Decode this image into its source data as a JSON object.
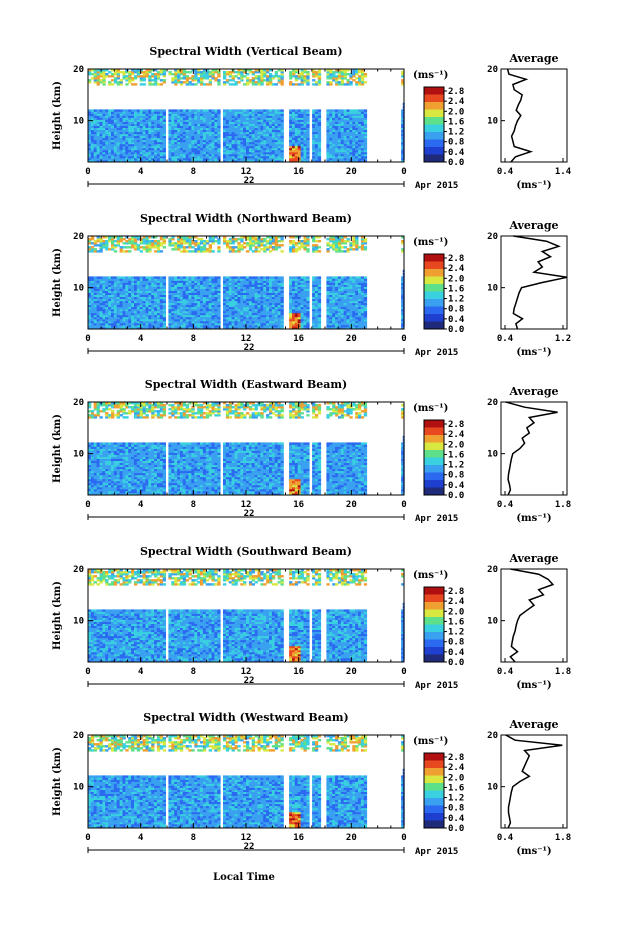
{
  "chart_data": {
    "type": "heatmap",
    "x_axis_label": "Local Time",
    "panels": [
      {
        "title": "Spectral Width (Vertical Beam)",
        "ylabel": "Height (km)",
        "x_ticks": [
          "0",
          "4",
          "8",
          "12",
          "16",
          "20",
          "0"
        ],
        "y_ticks": [
          "20",
          "10"
        ],
        "ylim": [
          2,
          20
        ],
        "date_day": "22",
        "date_month": "Apr 2015",
        "colorbar_unit": "(ms⁻¹)",
        "colorbar_ticks": [
          "2.8",
          "2.4",
          "2.0",
          "1.6",
          "1.2",
          "0.8",
          "0.4",
          "0.0"
        ],
        "average_title": "Average",
        "average_xlabel": "(ms⁻¹)",
        "average_xticks": [
          "0.4",
          "1.4"
        ],
        "average_xlim": [
          0.4,
          1.4
        ],
        "average_yticks": [
          "20",
          "10"
        ],
        "average_profile": {
          "height": [
            2,
            3,
            4,
            5,
            6,
            7,
            8,
            9,
            10,
            11,
            12,
            13,
            14,
            15,
            16,
            17,
            18,
            19,
            20
          ],
          "width": [
            0.55,
            0.62,
            0.85,
            0.6,
            0.58,
            0.56,
            0.6,
            0.62,
            0.65,
            0.7,
            0.63,
            0.66,
            0.7,
            0.72,
            0.6,
            0.58,
            0.78,
            0.52,
            0.5
          ]
        }
      },
      {
        "title": "Spectral Width (Northward Beam)",
        "ylabel": "Height (km)",
        "x_ticks": [
          "0",
          "4",
          "8",
          "12",
          "16",
          "20",
          "0"
        ],
        "y_ticks": [
          "20",
          "10"
        ],
        "ylim": [
          2,
          20
        ],
        "date_day": "22",
        "date_month": "Apr 2015",
        "colorbar_unit": "(ms⁻¹)",
        "colorbar_ticks": [
          "2.8",
          "2.4",
          "2.0",
          "1.6",
          "1.2",
          "0.8",
          "0.4",
          "0.0"
        ],
        "average_title": "Average",
        "average_xlabel": "(ms⁻¹)",
        "average_xticks": [
          "0.4",
          "1.2"
        ],
        "average_xlim": [
          0.4,
          1.2
        ],
        "average_yticks": [
          "20",
          "10"
        ],
        "average_profile": {
          "height": [
            2,
            3,
            4,
            5,
            6,
            7,
            8,
            9,
            10,
            11,
            12,
            13,
            14,
            15,
            16,
            17,
            18,
            19,
            20
          ],
          "width": [
            0.6,
            0.58,
            0.66,
            0.55,
            0.56,
            0.58,
            0.6,
            0.62,
            0.65,
            0.9,
            1.2,
            0.8,
            0.9,
            0.85,
            1.0,
            0.9,
            1.1,
            0.95,
            0.55
          ]
        }
      },
      {
        "title": "Spectral Width (Eastward Beam)",
        "ylabel": "Height (km)",
        "x_ticks": [
          "0",
          "4",
          "8",
          "12",
          "16",
          "20",
          "0"
        ],
        "y_ticks": [
          "20",
          "10"
        ],
        "ylim": [
          2,
          20
        ],
        "date_day": "22",
        "date_month": "Apr 2015",
        "colorbar_unit": "(ms⁻¹)",
        "colorbar_ticks": [
          "2.8",
          "2.4",
          "2.0",
          "1.6",
          "1.2",
          "0.8",
          "0.4",
          "0.0"
        ],
        "average_title": "Average",
        "average_xlabel": "(ms⁻¹)",
        "average_xticks": [
          "0.4",
          "1.8"
        ],
        "average_xlim": [
          0.4,
          1.8
        ],
        "average_yticks": [
          "20",
          "10"
        ],
        "average_profile": {
          "height": [
            2,
            3,
            4,
            5,
            6,
            7,
            8,
            9,
            10,
            11,
            12,
            13,
            14,
            15,
            16,
            17,
            18,
            19,
            20
          ],
          "width": [
            0.55,
            0.6,
            0.58,
            0.55,
            0.56,
            0.58,
            0.6,
            0.62,
            0.65,
            0.8,
            0.9,
            0.85,
            1.0,
            0.95,
            1.1,
            1.0,
            1.6,
            0.9,
            0.5
          ]
        }
      },
      {
        "title": "Spectral Width (Southward Beam)",
        "ylabel": "Height (km)",
        "x_ticks": [
          "0",
          "4",
          "8",
          "12",
          "16",
          "20",
          "0"
        ],
        "y_ticks": [
          "20",
          "10"
        ],
        "ylim": [
          2,
          20
        ],
        "date_day": "22",
        "date_month": "Apr 2015",
        "colorbar_unit": "(ms⁻¹)",
        "colorbar_ticks": [
          "2.8",
          "2.4",
          "2.0",
          "1.6",
          "1.2",
          "0.8",
          "0.4",
          "0.0"
        ],
        "average_title": "Average",
        "average_xlabel": "(ms⁻¹)",
        "average_xticks": [
          "0.4",
          "1.8"
        ],
        "average_xlim": [
          0.4,
          1.8
        ],
        "average_yticks": [
          "20",
          "10"
        ],
        "average_profile": {
          "height": [
            2,
            3,
            4,
            5,
            6,
            7,
            8,
            9,
            10,
            11,
            12,
            13,
            14,
            15,
            16,
            17,
            18,
            19,
            20
          ],
          "width": [
            0.7,
            0.6,
            0.75,
            0.62,
            0.64,
            0.66,
            0.7,
            0.72,
            0.75,
            0.8,
            0.95,
            1.1,
            1.0,
            1.3,
            1.2,
            1.5,
            1.4,
            1.2,
            0.6
          ]
        }
      },
      {
        "title": "Spectral Width (Westward Beam)",
        "ylabel": "Height (km)",
        "x_ticks": [
          "0",
          "4",
          "8",
          "12",
          "16",
          "20",
          "0"
        ],
        "y_ticks": [
          "20",
          "10"
        ],
        "ylim": [
          2,
          20
        ],
        "date_day": "22",
        "date_month": "Apr 2015",
        "colorbar_unit": "(ms⁻¹)",
        "colorbar_ticks": [
          "2.8",
          "2.4",
          "2.0",
          "1.6",
          "1.2",
          "0.8",
          "0.4",
          "0.0"
        ],
        "average_title": "Average",
        "average_xlabel": "(ms⁻¹)",
        "average_xticks": [
          "0.4",
          "1.8"
        ],
        "average_xlim": [
          0.4,
          1.8
        ],
        "average_yticks": [
          "20",
          "10"
        ],
        "average_profile": {
          "height": [
            2,
            3,
            4,
            5,
            6,
            7,
            8,
            9,
            10,
            11,
            12,
            13,
            14,
            15,
            16,
            17,
            18,
            19,
            20
          ],
          "width": [
            0.55,
            0.6,
            0.58,
            0.56,
            0.56,
            0.58,
            0.6,
            0.62,
            0.65,
            0.8,
            1.0,
            0.85,
            0.9,
            0.95,
            1.0,
            0.9,
            1.7,
            0.7,
            0.5
          ]
        }
      }
    ]
  }
}
